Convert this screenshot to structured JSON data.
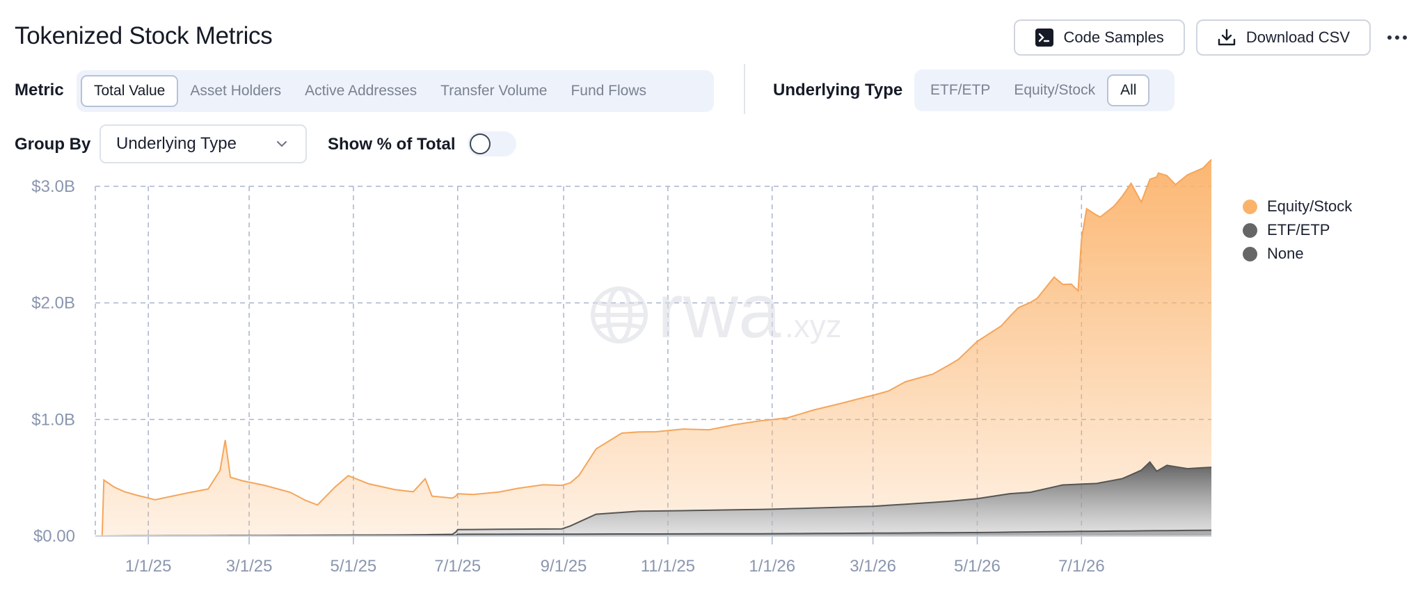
{
  "header": {
    "title": "Tokenized Stock Metrics"
  },
  "actions": {
    "code_samples": "Code Samples",
    "download_csv": "Download CSV"
  },
  "metric": {
    "label": "Metric",
    "options": [
      "Total Value",
      "Asset Holders",
      "Active Addresses",
      "Transfer Volume",
      "Fund Flows"
    ],
    "selected": "Total Value"
  },
  "underlying_type": {
    "label": "Underlying Type",
    "options": [
      "ETF/ETP",
      "Equity/Stock",
      "All"
    ],
    "selected": "All"
  },
  "group_by": {
    "label": "Group By",
    "value": "Underlying Type"
  },
  "show_pct": {
    "label": "Show % of Total",
    "on": false
  },
  "watermark": {
    "main": "rwa",
    "suffix": ".xyz"
  },
  "colors": {
    "equity": "#fbb36b",
    "etf": "#6b6b6b",
    "none": "#6b6b6b",
    "grid": "#a7b3cf",
    "tick": "#8a96ae"
  },
  "chart_data": {
    "type": "area",
    "stacked": true,
    "ylabel": "",
    "xlabel": "",
    "ylim": [
      0,
      3000000000
    ],
    "y_ticks": [
      0,
      1000000000,
      2000000000,
      3000000000
    ],
    "y_tick_labels": [
      "$0.00",
      "$1.0B",
      "$2.0B",
      "$3.0B"
    ],
    "x_range": [
      "2024-12-01",
      "2026-09-15"
    ],
    "x_ticks": [
      "2025-01-01",
      "2025-03-01",
      "2025-05-01",
      "2025-07-01",
      "2025-09-01",
      "2025-11-01",
      "2026-01-01",
      "2026-03-01",
      "2026-05-01",
      "2026-07-01"
    ],
    "x_tick_labels": [
      "1/1/25",
      "3/1/25",
      "5/1/25",
      "7/1/25",
      "9/1/25",
      "11/1/25",
      "1/1/26",
      "3/1/26",
      "5/1/26",
      "7/1/26"
    ],
    "grid": true,
    "legend_position": "right",
    "series": [
      {
        "name": "Equity/Stock",
        "points": [
          [
            "2024-12-05",
            0
          ],
          [
            "2024-12-06",
            480000000
          ],
          [
            "2024-12-12",
            420000000
          ],
          [
            "2024-12-18",
            380000000
          ],
          [
            "2024-12-25",
            350000000
          ],
          [
            "2025-01-05",
            310000000
          ],
          [
            "2025-01-15",
            340000000
          ],
          [
            "2025-01-25",
            370000000
          ],
          [
            "2025-02-05",
            400000000
          ],
          [
            "2025-02-12",
            560000000
          ],
          [
            "2025-02-15",
            820000000
          ],
          [
            "2025-02-18",
            500000000
          ],
          [
            "2025-02-25",
            470000000
          ],
          [
            "2025-03-10",
            430000000
          ],
          [
            "2025-03-25",
            370000000
          ],
          [
            "2025-04-03",
            300000000
          ],
          [
            "2025-04-10",
            260000000
          ],
          [
            "2025-04-20",
            410000000
          ],
          [
            "2025-04-28",
            510000000
          ],
          [
            "2025-05-10",
            440000000
          ],
          [
            "2025-05-25",
            390000000
          ],
          [
            "2025-06-05",
            370000000
          ],
          [
            "2025-06-12",
            480000000
          ],
          [
            "2025-06-16",
            330000000
          ],
          [
            "2025-06-28",
            310000000
          ],
          [
            "2025-07-10",
            300000000
          ],
          [
            "2025-07-25",
            320000000
          ],
          [
            "2025-08-05",
            350000000
          ],
          [
            "2025-08-20",
            380000000
          ],
          [
            "2025-09-05",
            370000000
          ],
          [
            "2025-09-10",
            400000000
          ],
          [
            "2025-09-20",
            560000000
          ],
          [
            "2025-10-05",
            680000000
          ],
          [
            "2025-10-25",
            680000000
          ],
          [
            "2025-11-10",
            700000000
          ],
          [
            "2025-11-25",
            690000000
          ],
          [
            "2025-12-10",
            730000000
          ],
          [
            "2025-12-25",
            760000000
          ],
          [
            "2026-01-10",
            780000000
          ],
          [
            "2026-01-25",
            840000000
          ],
          [
            "2026-02-10",
            890000000
          ],
          [
            "2026-02-25",
            940000000
          ],
          [
            "2026-03-10",
            980000000
          ],
          [
            "2026-03-20",
            1050000000
          ],
          [
            "2026-04-05",
            1100000000
          ],
          [
            "2026-04-20",
            1210000000
          ],
          [
            "2026-05-01",
            1350000000
          ],
          [
            "2026-05-15",
            1450000000
          ],
          [
            "2026-05-25",
            1590000000
          ],
          [
            "2026-06-05",
            1650000000
          ],
          [
            "2026-06-15",
            1800000000
          ],
          [
            "2026-06-20",
            1720000000
          ],
          [
            "2026-06-25",
            1720000000
          ],
          [
            "2026-06-29",
            1660000000
          ],
          [
            "2026-07-01",
            2100000000
          ],
          [
            "2026-07-04",
            2360000000
          ],
          [
            "2026-07-12",
            2280000000
          ],
          [
            "2026-07-20",
            2350000000
          ],
          [
            "2026-07-30",
            2500000000
          ],
          [
            "2026-08-05",
            2300000000
          ],
          [
            "2026-08-15",
            2550000000
          ],
          [
            "2026-08-25",
            2420000000
          ],
          [
            "2026-09-01",
            2520000000
          ],
          [
            "2026-09-10",
            2570000000
          ],
          [
            "2026-09-15",
            2640000000
          ]
        ]
      },
      {
        "name": "ETF/ETP",
        "points": [
          [
            "2024-12-05",
            0
          ],
          [
            "2025-06-01",
            5000000
          ],
          [
            "2025-06-28",
            10000000
          ],
          [
            "2025-07-01",
            40000000
          ],
          [
            "2025-08-31",
            45000000
          ],
          [
            "2025-09-05",
            70000000
          ],
          [
            "2025-09-20",
            170000000
          ],
          [
            "2025-10-15",
            195000000
          ],
          [
            "2025-11-15",
            200000000
          ],
          [
            "2026-01-01",
            210000000
          ],
          [
            "2026-03-01",
            230000000
          ],
          [
            "2026-04-15",
            270000000
          ],
          [
            "2026-05-01",
            290000000
          ],
          [
            "2026-05-20",
            330000000
          ],
          [
            "2026-06-01",
            340000000
          ],
          [
            "2026-06-20",
            400000000
          ],
          [
            "2026-07-10",
            410000000
          ],
          [
            "2026-07-25",
            450000000
          ],
          [
            "2026-08-05",
            520000000
          ],
          [
            "2026-08-10",
            590000000
          ],
          [
            "2026-08-14",
            510000000
          ],
          [
            "2026-08-20",
            560000000
          ],
          [
            "2026-09-01",
            530000000
          ],
          [
            "2026-09-15",
            540000000
          ]
        ]
      },
      {
        "name": "None",
        "points": [
          [
            "2024-12-05",
            0
          ],
          [
            "2025-06-30",
            5000000
          ],
          [
            "2025-07-01",
            15000000
          ],
          [
            "2026-01-01",
            20000000
          ],
          [
            "2026-05-01",
            30000000
          ],
          [
            "2026-07-01",
            40000000
          ],
          [
            "2026-09-15",
            50000000
          ]
        ]
      }
    ]
  }
}
